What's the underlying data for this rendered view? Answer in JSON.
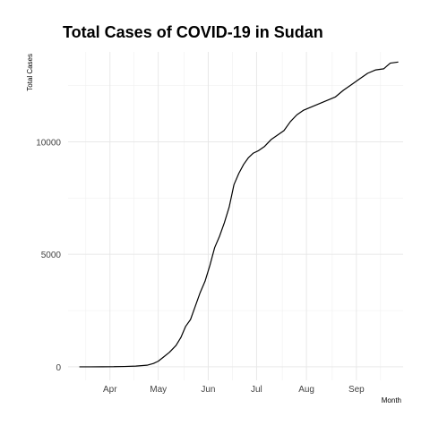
{
  "chart_data": {
    "type": "line",
    "title": "Total Cases of COVID-19 in Sudan",
    "xlabel": "Month",
    "ylabel": "Total Cases",
    "x_tick_labels": [
      "Apr",
      "May",
      "Jun",
      "Jul",
      "Aug",
      "Sep"
    ],
    "x_tick_dates": [
      "2020-04-01",
      "2020-05-01",
      "2020-06-01",
      "2020-07-01",
      "2020-08-01",
      "2020-09-01"
    ],
    "y_ticks": [
      0,
      5000,
      10000
    ],
    "ylim": [
      -600,
      14000
    ],
    "xlim": [
      "2020-03-06",
      "2020-09-30"
    ],
    "grid": true,
    "line_color": "#000000",
    "series": [
      {
        "x": [
          "2020-03-13",
          "2020-03-20",
          "2020-03-27",
          "2020-04-03",
          "2020-04-10",
          "2020-04-17",
          "2020-04-24",
          "2020-04-28",
          "2020-05-01",
          "2020-05-04",
          "2020-05-08",
          "2020-05-12",
          "2020-05-15",
          "2020-05-18",
          "2020-05-21",
          "2020-05-24",
          "2020-05-27",
          "2020-05-30",
          "2020-06-02",
          "2020-06-05",
          "2020-06-08",
          "2020-06-11",
          "2020-06-14",
          "2020-06-17",
          "2020-06-20",
          "2020-06-23",
          "2020-06-26",
          "2020-06-29",
          "2020-07-02",
          "2020-07-06",
          "2020-07-10",
          "2020-07-14",
          "2020-07-18",
          "2020-07-22",
          "2020-07-26",
          "2020-07-30",
          "2020-08-04",
          "2020-08-09",
          "2020-08-14",
          "2020-08-19",
          "2020-08-24",
          "2020-08-29",
          "2020-09-03",
          "2020-09-08",
          "2020-09-13",
          "2020-09-18",
          "2020-09-22",
          "2020-09-27"
        ],
        "y": [
          0,
          0,
          2,
          5,
          15,
          30,
          70,
          150,
          250,
          420,
          650,
          950,
          1300,
          1800,
          2100,
          2700,
          3300,
          3800,
          4500,
          5300,
          5800,
          6400,
          7100,
          8100,
          8600,
          9000,
          9300,
          9500,
          9600,
          9800,
          10100,
          10300,
          10500,
          10900,
          11200,
          11400,
          11550,
          11700,
          11850,
          12000,
          12300,
          12550,
          12800,
          13050,
          13200,
          13250,
          13500,
          13550
        ]
      }
    ]
  }
}
